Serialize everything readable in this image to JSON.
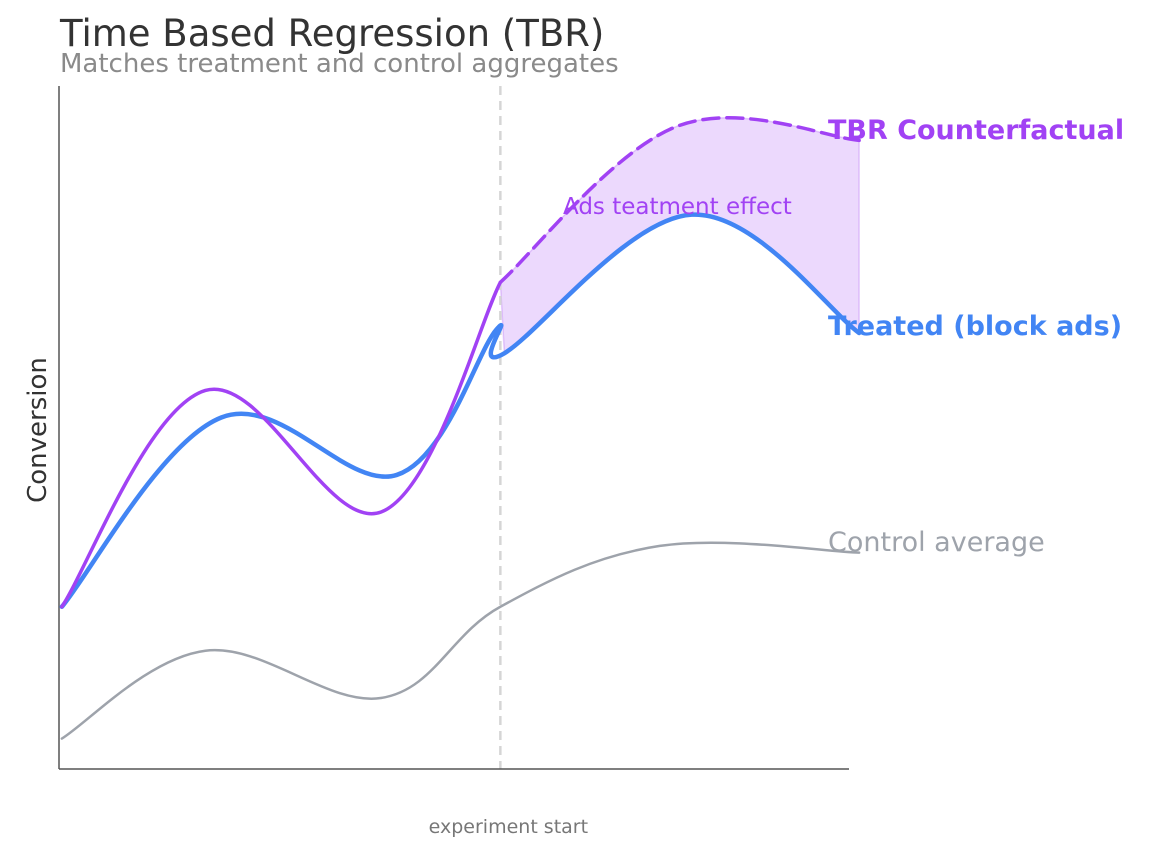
{
  "chart_data": {
    "type": "line",
    "title": "Time Based Regression (TBR)",
    "subtitle": "Matches treatment and control aggregates",
    "xlabel": "",
    "ylabel": "Conversion",
    "x_tick_labels": [
      {
        "x": 6.0,
        "label": "experiment start"
      }
    ],
    "xlim": [
      0,
      11
    ],
    "ylim": [
      0,
      100
    ],
    "grid": false,
    "legend": "none",
    "experiment_start_x": 6.0,
    "series": [
      {
        "name": "Control average",
        "color": "#9ea3ab",
        "style": "solid",
        "points": [
          [
            0.5,
            4.5
          ],
          [
            2.3,
            17.5
          ],
          [
            4.5,
            10.5
          ],
          [
            6.0,
            24
          ],
          [
            8.0,
            33
          ],
          [
            10.5,
            32
          ]
        ]
      },
      {
        "name": "Treated (block ads)",
        "color": "#4285f4",
        "style": "solid",
        "points": [
          [
            0.5,
            24
          ],
          [
            2.5,
            52
          ],
          [
            4.7,
            43.5
          ],
          [
            5.95,
            65
          ],
          [
            6.05,
            61.5
          ],
          [
            8.4,
            82
          ],
          [
            10.5,
            64.5
          ]
        ]
      },
      {
        "name": "TBR Counterfactual",
        "color": "#a142f4",
        "style": "solid",
        "points": [
          [
            0.5,
            24
          ],
          [
            2.3,
            56
          ],
          [
            4.5,
            38
          ],
          [
            6.0,
            72
          ]
        ]
      },
      {
        "name": "TBR Counterfactual",
        "color": "#a142f4",
        "style": "dashed",
        "points": [
          [
            6.0,
            72
          ],
          [
            8.2,
            95
          ],
          [
            10.5,
            93
          ]
        ]
      }
    ],
    "shaded_region": {
      "label": "Ads teatment effect",
      "color": "#a142f4",
      "x_range": [
        6.05,
        10.5
      ]
    },
    "line_labels": [
      {
        "text": "TBR Counterfactual",
        "color": "#a142f4",
        "bold": true
      },
      {
        "text": "Treated (block ads)",
        "color": "#4285f4",
        "bold": true
      },
      {
        "text": "Control average",
        "color": "#9ea3ab",
        "bold": false
      }
    ]
  }
}
